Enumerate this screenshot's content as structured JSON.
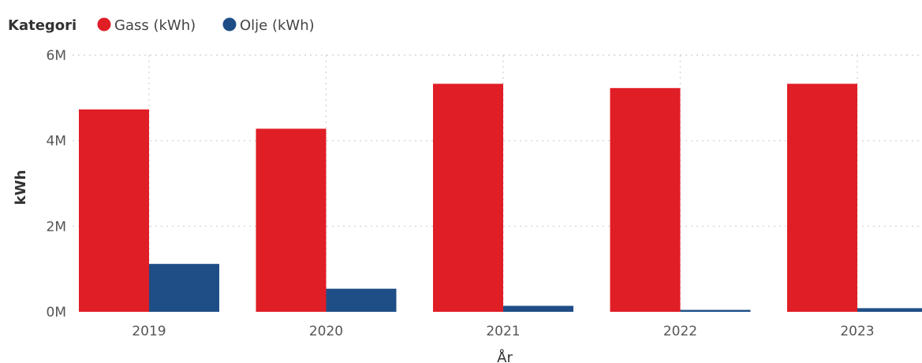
{
  "legend": {
    "title": "Kategori"
  },
  "chart_data": {
    "type": "bar",
    "categories": [
      "2019",
      "2020",
      "2021",
      "2022",
      "2023"
    ],
    "series": [
      {
        "name": "Gass (kWh)",
        "color": "#e01e26",
        "values": [
          4730000,
          4280000,
          5330000,
          5230000,
          5330000
        ]
      },
      {
        "name": "Olje (kWh)",
        "color": "#1f4e87",
        "values": [
          1120000,
          540000,
          140000,
          45000,
          85000
        ]
      }
    ],
    "xlabel": "År",
    "ylabel": "kWh",
    "ylim": [
      0,
      6000000
    ],
    "yticks": [
      0,
      2000000,
      4000000,
      6000000
    ],
    "ytick_labels": [
      "0M",
      "2M",
      "4M",
      "6M"
    ],
    "grid": true,
    "legend_position": "top-left"
  }
}
